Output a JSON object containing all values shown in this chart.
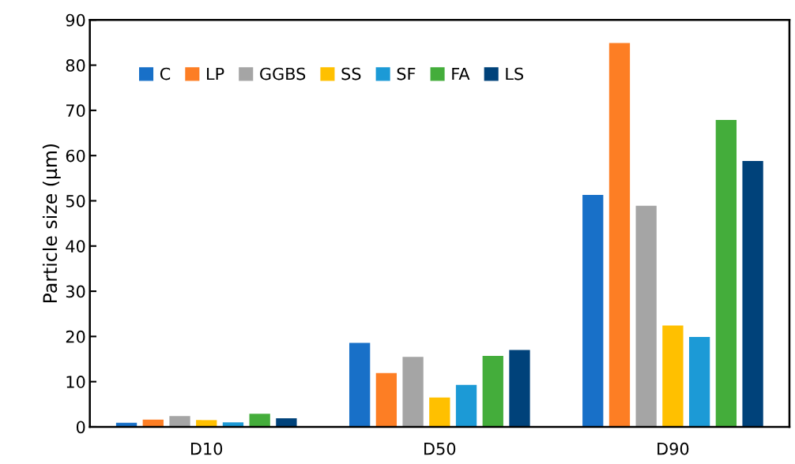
{
  "chart_data": {
    "type": "bar",
    "ylabel": "Particle size (µm)",
    "categories": [
      "D10",
      "D50",
      "D90"
    ],
    "series": [
      {
        "name": "C",
        "color": "#1870c8",
        "values": [
          0.9,
          18.6,
          51.3
        ]
      },
      {
        "name": "LP",
        "color": "#fd7e24",
        "values": [
          1.6,
          11.9,
          84.9
        ]
      },
      {
        "name": "GGBS",
        "color": "#a5a5a5",
        "values": [
          2.4,
          15.5,
          48.9
        ]
      },
      {
        "name": "SS",
        "color": "#ffc000",
        "values": [
          1.5,
          6.5,
          22.4
        ]
      },
      {
        "name": "SF",
        "color": "#1c9ad6",
        "values": [
          1.0,
          9.3,
          19.9
        ]
      },
      {
        "name": "FA",
        "color": "#44ad3b",
        "values": [
          2.9,
          15.7,
          67.9
        ]
      },
      {
        "name": "LS",
        "color": "#00427a",
        "values": [
          1.9,
          17.0,
          58.8
        ]
      }
    ],
    "ylim": [
      0,
      90
    ],
    "yticks": [
      0,
      10,
      20,
      30,
      40,
      50,
      60,
      70,
      80,
      90
    ],
    "grid": false,
    "legend": "top left"
  }
}
